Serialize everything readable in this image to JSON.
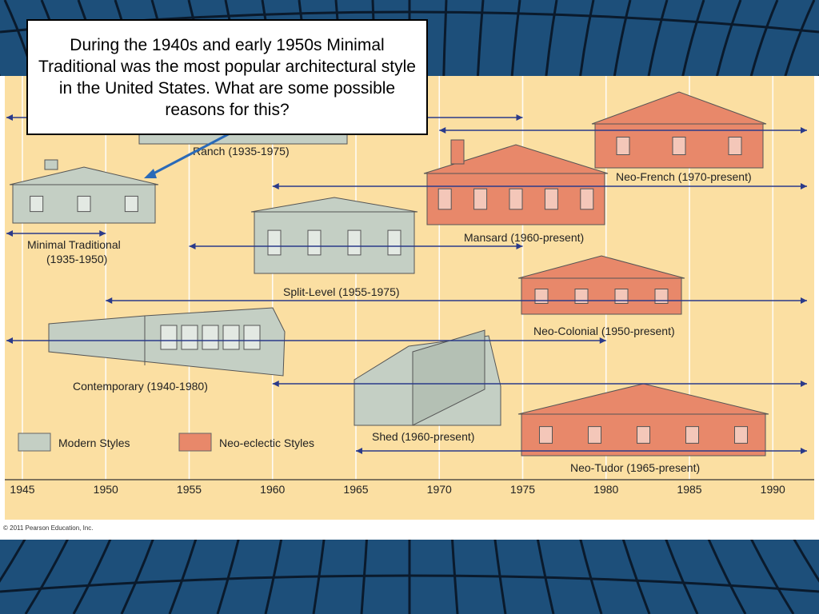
{
  "question": "During the 1940s and early 1950s Minimal Traditional was the most popular architectural style in the United States. What are some possible reasons for this?",
  "copyright": "© 2011 Pearson Education, Inc.",
  "legend": {
    "modern": "Modern Styles",
    "neo_eclectic": "Neo-eclectic Styles"
  },
  "colors": {
    "modern": "#c4cfc4",
    "neo_eclectic": "#e8886a",
    "chart_background": "#fbdfa2",
    "arrow": "#2a3a8a",
    "slide_background": "#1d4f7a"
  },
  "chart_data": {
    "type": "timeline",
    "x_ticks": [
      "1945",
      "1950",
      "1955",
      "1960",
      "1965",
      "1970",
      "1975",
      "1980",
      "1985",
      "1990"
    ],
    "x_range": [
      1944,
      1992
    ],
    "styles": [
      {
        "label": "Ranch (1935-1975)",
        "category": "modern",
        "start": 1935,
        "end": 1975
      },
      {
        "label": "Minimal Traditional\n(1935-1950)",
        "category": "modern",
        "start": 1935,
        "end": 1950
      },
      {
        "label": "Split-Level (1955-1975)",
        "category": "modern",
        "start": 1955,
        "end": 1975
      },
      {
        "label": "Contemporary (1940-1980)",
        "category": "modern",
        "start": 1940,
        "end": 1980
      },
      {
        "label": "Shed (1960-present)",
        "category": "modern",
        "start": 1960,
        "end": "present"
      },
      {
        "label": "Neo-French (1970-present)",
        "category": "neo_eclectic",
        "start": 1970,
        "end": "present"
      },
      {
        "label": "Mansard (1960-present)",
        "category": "neo_eclectic",
        "start": 1960,
        "end": "present"
      },
      {
        "label": "Neo-Colonial (1950-present)",
        "category": "neo_eclectic",
        "start": 1950,
        "end": "present"
      },
      {
        "label": "Neo-Tudor (1965-present)",
        "category": "neo_eclectic",
        "start": 1965,
        "end": "present"
      }
    ]
  }
}
